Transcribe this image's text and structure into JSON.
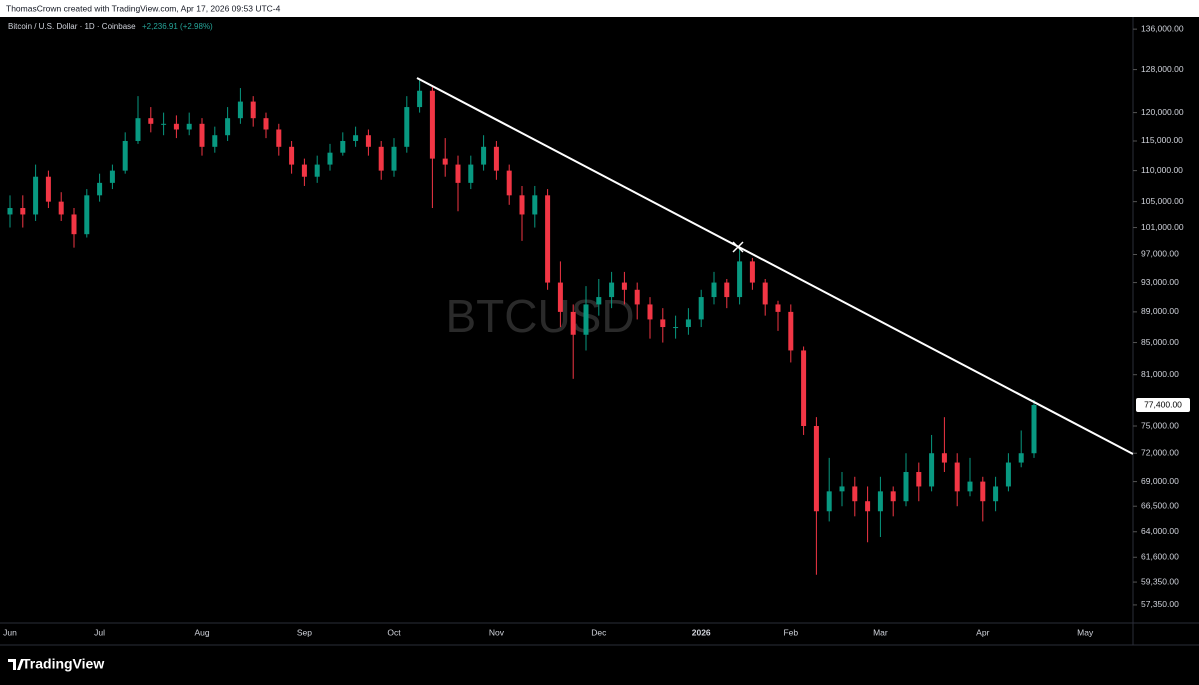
{
  "header": "ThomasCrown created with TradingView.com, Apr 17, 2026 09:53 UTC-4",
  "footer": "TradingView",
  "chart_data": {
    "type": "candlestick",
    "title": "Bitcoin / U.S. Dollar · 1D · Coinbase",
    "subtitle": "+2,236.91 (+2.98%)",
    "watermark": "BTCUSD",
    "up_color": "#089981",
    "down_color": "#f23645",
    "log": true,
    "grid": false,
    "ylim": [
      55900,
      138500
    ],
    "yticks": [
      {
        "value": 136000,
        "label": "136,000.00"
      },
      {
        "value": 128000,
        "label": "128,000.00"
      },
      {
        "value": 120000,
        "label": "120,000.00"
      },
      {
        "value": 115000,
        "label": "115,000.00"
      },
      {
        "value": 110000,
        "label": "110,000.00"
      },
      {
        "value": 105000,
        "label": "105,000.00"
      },
      {
        "value": 101000,
        "label": "101,000.00"
      },
      {
        "value": 97000,
        "label": "97,000.00"
      },
      {
        "value": 93000,
        "label": "93,000.00"
      },
      {
        "value": 89000,
        "label": "89,000.00"
      },
      {
        "value": 85000,
        "label": "85,000.00"
      },
      {
        "value": 81000,
        "label": "81,000.00"
      },
      {
        "value": 75000,
        "label": "75,000.00"
      },
      {
        "value": 72000,
        "label": "72,000.00"
      },
      {
        "value": 69000,
        "label": "69,000.00"
      },
      {
        "value": 66500,
        "label": "66,500.00"
      },
      {
        "value": 64000,
        "label": "64,000.00"
      },
      {
        "value": 61600,
        "label": "61,600.00"
      },
      {
        "value": 59350,
        "label": "59,350.00"
      },
      {
        "value": 57350,
        "label": "57,350.00"
      }
    ],
    "price_label": {
      "value": 77400,
      "label": "77,400.00"
    },
    "categories": [
      "Jun",
      null,
      null,
      null,
      null,
      null,
      null,
      "Jul",
      null,
      null,
      null,
      null,
      null,
      null,
      null,
      "Aug",
      null,
      null,
      null,
      null,
      null,
      null,
      null,
      "Sep",
      null,
      null,
      null,
      null,
      null,
      null,
      "Oct",
      null,
      null,
      null,
      null,
      null,
      null,
      null,
      "Nov",
      null,
      null,
      null,
      null,
      null,
      null,
      null,
      "Dec",
      null,
      null,
      null,
      null,
      null,
      null,
      null,
      "2026",
      null,
      null,
      null,
      null,
      null,
      null,
      "Feb",
      null,
      null,
      null,
      null,
      null,
      null,
      "Mar",
      null,
      null,
      null,
      null,
      null,
      null,
      null,
      "Apr",
      null,
      null,
      null,
      null,
      null,
      null,
      null,
      "May"
    ],
    "open": [
      103000,
      104000,
      103000,
      109000,
      105000,
      103000,
      100000,
      106000,
      108000,
      110000,
      115000,
      119000,
      118000,
      118000,
      117000,
      118000,
      114000,
      116000,
      119000,
      122000,
      119000,
      117000,
      114000,
      111000,
      109000,
      111000,
      113000,
      115000,
      116000,
      114000,
      110000,
      114000,
      121000,
      124000,
      112000,
      111000,
      108000,
      111000,
      114000,
      110000,
      106000,
      103000,
      106000,
      93000,
      89000,
      86000,
      90000,
      91000,
      93000,
      92000,
      90000,
      88000,
      87000,
      87000,
      88000,
      91000,
      93000,
      91000,
      96000,
      93000,
      90000,
      89000,
      84000,
      75000,
      66000,
      68000,
      68500,
      67000,
      66000,
      68000,
      67000,
      70000,
      68500,
      72000,
      71000,
      68000,
      69000,
      67000,
      68500,
      71000,
      72000,
      null,
      null,
      null,
      null
    ],
    "high": [
      106000,
      106000,
      111000,
      110000,
      106500,
      104000,
      107000,
      109500,
      111000,
      116500,
      123000,
      121000,
      120000,
      119500,
      120000,
      119000,
      117500,
      121000,
      124500,
      123000,
      120000,
      118000,
      115000,
      112000,
      112500,
      114500,
      116500,
      117500,
      117000,
      115000,
      115500,
      123000,
      126200,
      125000,
      115500,
      112500,
      112500,
      116000,
      115000,
      111000,
      107500,
      107500,
      107000,
      96000,
      90000,
      92500,
      93500,
      94500,
      94500,
      93000,
      91000,
      89500,
      88500,
      89500,
      92000,
      94500,
      93500,
      97900,
      96500,
      93500,
      90500,
      90000,
      84500,
      76000,
      71500,
      70000,
      69500,
      68500,
      69500,
      68500,
      72000,
      71000,
      74000,
      76000,
      72000,
      71500,
      69500,
      69500,
      72000,
      74500,
      78000,
      null,
      null,
      null,
      null
    ],
    "low": [
      101000,
      101000,
      102000,
      104000,
      102000,
      98000,
      99500,
      105000,
      107000,
      109500,
      114500,
      116500,
      116000,
      115500,
      116000,
      112500,
      113000,
      115000,
      118000,
      117500,
      115500,
      112500,
      109500,
      107500,
      108000,
      110000,
      112500,
      114000,
      112500,
      108500,
      109000,
      113000,
      120000,
      104000,
      109000,
      103500,
      107000,
      110000,
      108500,
      104500,
      99000,
      101000,
      92000,
      87000,
      80500,
      84000,
      88500,
      89500,
      90000,
      88000,
      85500,
      85000,
      85500,
      86000,
      87000,
      90000,
      89500,
      90000,
      92000,
      88500,
      86500,
      82500,
      74000,
      60000,
      65000,
      66500,
      65500,
      63000,
      63500,
      65500,
      66500,
      67000,
      68000,
      70000,
      66500,
      67500,
      65000,
      66000,
      68000,
      70500,
      71500,
      null,
      null,
      null,
      null
    ],
    "close": [
      104000,
      103000,
      109000,
      105000,
      103000,
      100000,
      106000,
      108000,
      110000,
      115000,
      119000,
      118000,
      118000,
      117000,
      118000,
      114000,
      116000,
      119000,
      122000,
      119000,
      117000,
      114000,
      111000,
      109000,
      111000,
      113000,
      115000,
      116000,
      114000,
      110000,
      114000,
      121000,
      124000,
      112000,
      111000,
      108000,
      111000,
      114000,
      110000,
      106000,
      103000,
      106000,
      93000,
      89000,
      86000,
      90000,
      91000,
      93000,
      92000,
      90000,
      88000,
      87000,
      87000,
      88000,
      91000,
      93000,
      91000,
      96000,
      93000,
      90000,
      89000,
      84000,
      75000,
      66000,
      68000,
      68500,
      67000,
      66000,
      68000,
      67000,
      70000,
      68500,
      72000,
      71000,
      68000,
      69000,
      67000,
      68500,
      71000,
      72000,
      77400,
      null,
      null,
      null,
      null
    ]
  }
}
